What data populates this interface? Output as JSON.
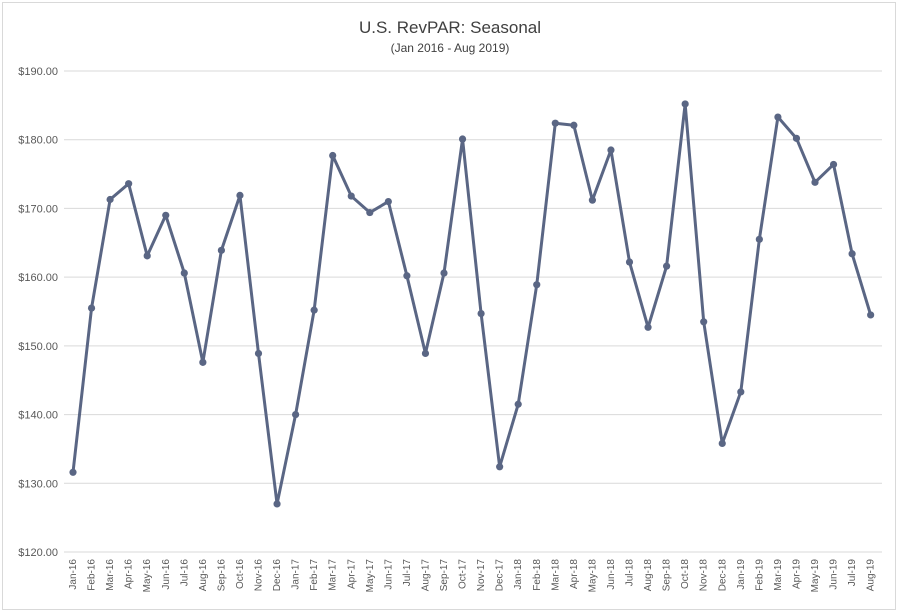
{
  "chart_data": {
    "type": "line",
    "title": "U.S. RevPAR: Seasonal",
    "subtitle": "(Jan 2016 - Aug 2019)",
    "xlabel": "",
    "ylabel": "",
    "ylim": [
      120,
      190
    ],
    "ytick_step": 10,
    "ytick_labels": [
      "$120.00",
      "$130.00",
      "$140.00",
      "$150.00",
      "$160.00",
      "$170.00",
      "$180.00",
      "$190.00"
    ],
    "grid": true,
    "legend": "none",
    "line_color": "#5a6684",
    "categories": [
      "Jan-16",
      "Feb-16",
      "Mar-16",
      "Apr-16",
      "May-16",
      "Jun-16",
      "Jul-16",
      "Aug-16",
      "Sep-16",
      "Oct-16",
      "Nov-16",
      "Dec-16",
      "Jan-17",
      "Feb-17",
      "Mar-17",
      "Apr-17",
      "May-17",
      "Jun-17",
      "Jul-17",
      "Aug-17",
      "Sep-17",
      "Oct-17",
      "Nov-17",
      "Dec-17",
      "Jan-18",
      "Feb-18",
      "Mar-18",
      "Apr-18",
      "May-18",
      "Jun-18",
      "Jul-18",
      "Aug-18",
      "Sep-18",
      "Oct-18",
      "Nov-18",
      "Dec-18",
      "Jan-19",
      "Feb-19",
      "Mar-19",
      "Apr-19",
      "May-19",
      "Jun-19",
      "Jul-19",
      "Aug-19"
    ],
    "values": [
      131.6,
      155.5,
      171.3,
      173.6,
      163.1,
      169.0,
      160.6,
      147.6,
      163.9,
      171.9,
      148.9,
      127.0,
      140.0,
      155.2,
      177.7,
      171.8,
      169.4,
      171.0,
      160.2,
      148.9,
      160.6,
      180.1,
      154.7,
      132.4,
      141.5,
      158.9,
      182.4,
      182.1,
      171.2,
      178.5,
      162.2,
      152.7,
      161.6,
      185.2,
      153.5,
      135.8,
      143.3,
      165.5,
      183.3,
      180.2,
      173.8,
      176.4,
      163.4,
      154.5
    ]
  }
}
